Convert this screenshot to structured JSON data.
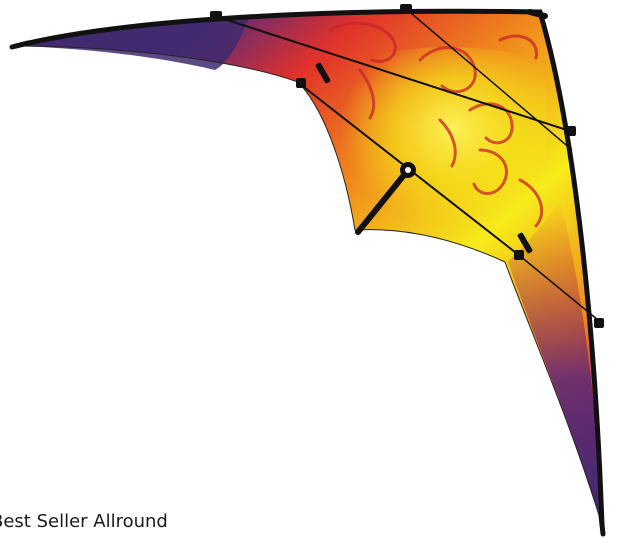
{
  "product": {
    "caption": "Best Seller Allround"
  },
  "colors": {
    "background": "#ffffff",
    "sail_purple": "#3f2a6e",
    "sail_red": "#e0312a",
    "sail_orange": "#f08a1c",
    "sail_yellow": "#f6ec1a",
    "frame": "#111111",
    "print": "#c8242a"
  },
  "icons": {
    "product": "stunt-kite-image"
  }
}
